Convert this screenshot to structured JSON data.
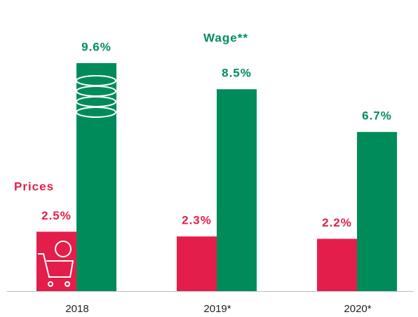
{
  "chart_data": {
    "type": "bar",
    "categories": [
      "2018",
      "2019*",
      "2020*"
    ],
    "series": [
      {
        "name": "Prices",
        "color": "#e31e4a",
        "values": [
          2.5,
          2.3,
          2.2
        ],
        "value_labels": [
          "2.5%",
          "2.3%",
          "2.2%"
        ]
      },
      {
        "name": "Wage**",
        "color": "#008c5a",
        "values": [
          9.6,
          8.5,
          6.7
        ],
        "value_labels": [
          "9.6%",
          "8.5%",
          "6.7%"
        ]
      }
    ]
  }
}
